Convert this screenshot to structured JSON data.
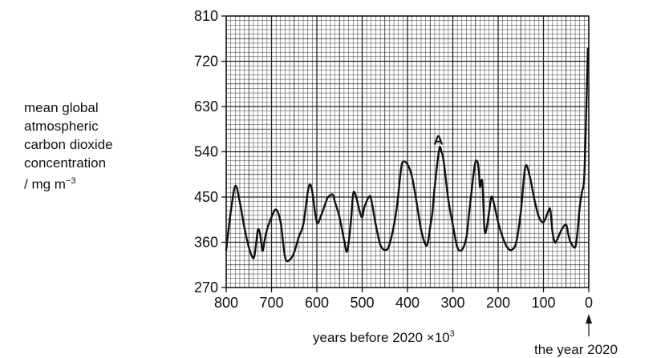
{
  "chart_data": {
    "type": "line",
    "ylabel_lines": [
      "mean global",
      "atmospheric",
      "carbon dioxide",
      "concentration",
      "/ mg m",
      "−3"
    ],
    "xlabel": "years before 2020 ×10",
    "xlabel_superscript": "3",
    "annotation_point_label": "A",
    "annotation_arrow_label": "the year 2020",
    "xlim": [
      800,
      0
    ],
    "ylim": [
      270,
      810
    ],
    "x_ticks": [
      "800",
      "700",
      "600",
      "500",
      "400",
      "300",
      "200",
      "100",
      "0"
    ],
    "y_ticks": [
      "270",
      "360",
      "450",
      "540",
      "630",
      "720",
      "810"
    ],
    "grid": true,
    "line_color": "#111111",
    "grid_color": "#222222",
    "series": [
      {
        "x": [
          800,
          790,
          780,
          770,
          760,
          750,
          740,
          735,
          730,
          725,
          720,
          715,
          710,
          700,
          690,
          680,
          670,
          660,
          650,
          640,
          630,
          620,
          615,
          610,
          600,
          590,
          580,
          575,
          565,
          560,
          550,
          540,
          533,
          525,
          520,
          515,
          505,
          500,
          495,
          485,
          480,
          470,
          460,
          450,
          440,
          425,
          415,
          410,
          400,
          390,
          380,
          370,
          360,
          355,
          350,
          345,
          340,
          330,
          325,
          320,
          310,
          300,
          290,
          280,
          270,
          265,
          260,
          255,
          250,
          245,
          242,
          240,
          235,
          230,
          225,
          220,
          215,
          210,
          200,
          190,
          180,
          170,
          160,
          150,
          140,
          130,
          120,
          110,
          100,
          90,
          85,
          80,
          75,
          70,
          60,
          50,
          45,
          40,
          30,
          25,
          20,
          15,
          10,
          5,
          2
        ],
        "y": [
          345,
          420,
          472,
          440,
          390,
          350,
          328,
          350,
          385,
          375,
          343,
          365,
          385,
          410,
          425,
          400,
          330,
          325,
          340,
          370,
          395,
          460,
          475,
          460,
          400,
          415,
          440,
          450,
          455,
          440,
          410,
          365,
          342,
          400,
          455,
          455,
          420,
          410,
          430,
          450,
          445,
          395,
          355,
          345,
          355,
          420,
          500,
          520,
          515,
          490,
          440,
          385,
          355,
          360,
          390,
          420,
          470,
          545,
          540,
          520,
          445,
          395,
          350,
          345,
          370,
          410,
          450,
          490,
          520,
          518,
          495,
          470,
          480,
          385,
          390,
          420,
          450,
          440,
          400,
          370,
          350,
          345,
          360,
          420,
          510,
          490,
          445,
          410,
          400,
          420,
          425,
          380,
          360,
          365,
          385,
          395,
          375,
          360,
          350,
          380,
          430,
          460,
          490,
          640,
          745
        ]
      }
    ]
  }
}
